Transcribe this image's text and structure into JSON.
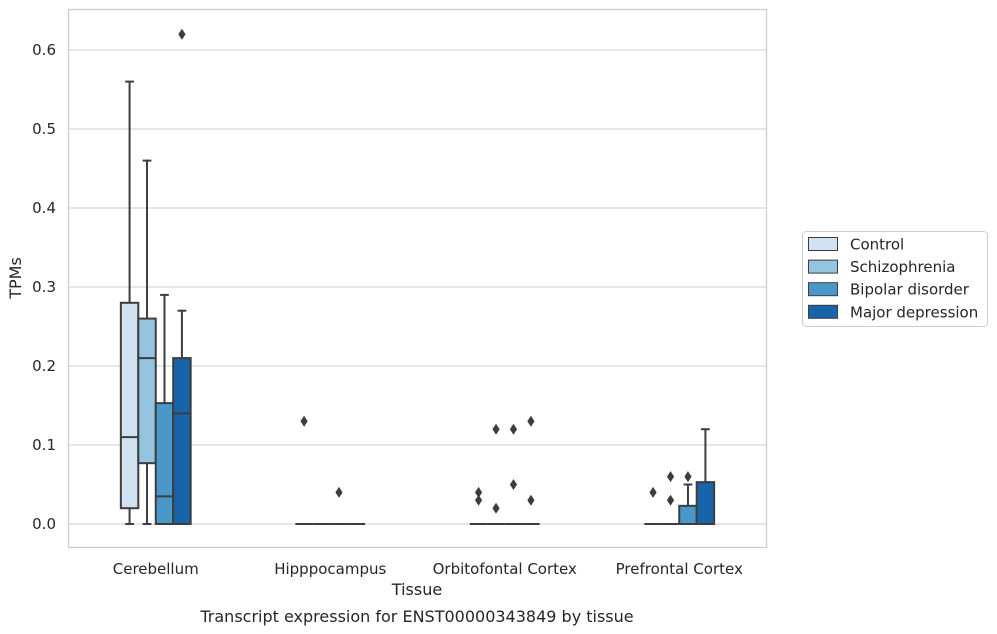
{
  "chart_data": {
    "type": "box",
    "xlabel": "Tissue",
    "ylabel": "TPMs",
    "caption": "Transcript expression for ENST00000343849 by tissue",
    "categories": [
      "Cerebellum",
      "Hipppocampus",
      "Orbitofontal Cortex",
      "Prefrontal Cortex"
    ],
    "ylim": [
      -0.03,
      0.655
    ],
    "yticks": [
      0.0,
      0.1,
      0.2,
      0.3,
      0.4,
      0.5,
      0.6
    ],
    "ytick_labels": [
      "0.0",
      "0.1",
      "0.2",
      "0.3",
      "0.4",
      "0.5",
      "0.6"
    ],
    "grid": true,
    "legend_position": "right",
    "series": [
      {
        "name": "Control",
        "color": "#d0e1f2",
        "boxes": [
          {
            "q1": 0.02,
            "median": 0.11,
            "q3": 0.28,
            "whisker_low": 0.0,
            "whisker_high": 0.56,
            "outliers": []
          },
          {
            "q1": 0.0,
            "median": 0.0,
            "q3": 0.0,
            "whisker_low": 0.0,
            "whisker_high": 0.0,
            "outliers": [
              0.13
            ]
          },
          {
            "q1": 0.0,
            "median": 0.0,
            "q3": 0.0,
            "whisker_low": 0.0,
            "whisker_high": 0.0,
            "outliers": [
              0.04,
              0.03
            ]
          },
          {
            "q1": 0.0,
            "median": 0.0,
            "q3": 0.0,
            "whisker_low": 0.0,
            "whisker_high": 0.0,
            "outliers": [
              0.04
            ]
          }
        ]
      },
      {
        "name": "Schizophrenia",
        "color": "#94c4df",
        "boxes": [
          {
            "q1": 0.077,
            "median": 0.21,
            "q3": 0.26,
            "whisker_low": 0.0,
            "whisker_high": 0.46,
            "outliers": []
          },
          {
            "q1": 0.0,
            "median": 0.0,
            "q3": 0.0,
            "whisker_low": 0.0,
            "whisker_high": 0.0,
            "outliers": []
          },
          {
            "q1": 0.0,
            "median": 0.0,
            "q3": 0.0,
            "whisker_low": 0.0,
            "whisker_high": 0.0,
            "outliers": [
              0.12,
              0.02
            ]
          },
          {
            "q1": 0.0,
            "median": 0.0,
            "q3": 0.0,
            "whisker_low": 0.0,
            "whisker_high": 0.0,
            "outliers": [
              0.06,
              0.03
            ]
          }
        ]
      },
      {
        "name": "Bipolar disorder",
        "color": "#4a98c9",
        "boxes": [
          {
            "q1": 0.0,
            "median": 0.035,
            "q3": 0.153,
            "whisker_low": 0.0,
            "whisker_high": 0.29,
            "outliers": []
          },
          {
            "q1": 0.0,
            "median": 0.0,
            "q3": 0.0,
            "whisker_low": 0.0,
            "whisker_high": 0.0,
            "outliers": [
              0.04
            ]
          },
          {
            "q1": 0.0,
            "median": 0.0,
            "q3": 0.0,
            "whisker_low": 0.0,
            "whisker_high": 0.0,
            "outliers": [
              0.12,
              0.05
            ]
          },
          {
            "q1": 0.0,
            "median": 0.0,
            "q3": 0.023,
            "whisker_low": 0.0,
            "whisker_high": 0.05,
            "outliers": [
              0.06
            ]
          }
        ]
      },
      {
        "name": "Major depression",
        "color": "#1764ab",
        "boxes": [
          {
            "q1": 0.0,
            "median": 0.14,
            "q3": 0.21,
            "whisker_low": 0.0,
            "whisker_high": 0.27,
            "outliers": [
              0.62
            ]
          },
          {
            "q1": 0.0,
            "median": 0.0,
            "q3": 0.0,
            "whisker_low": 0.0,
            "whisker_high": 0.0,
            "outliers": []
          },
          {
            "q1": 0.0,
            "median": 0.0,
            "q3": 0.0,
            "whisker_low": 0.0,
            "whisker_high": 0.0,
            "outliers": [
              0.13,
              0.03
            ]
          },
          {
            "q1": 0.0,
            "median": 0.0,
            "q3": 0.053,
            "whisker_low": 0.0,
            "whisker_high": 0.12,
            "outliers": []
          }
        ]
      }
    ]
  }
}
